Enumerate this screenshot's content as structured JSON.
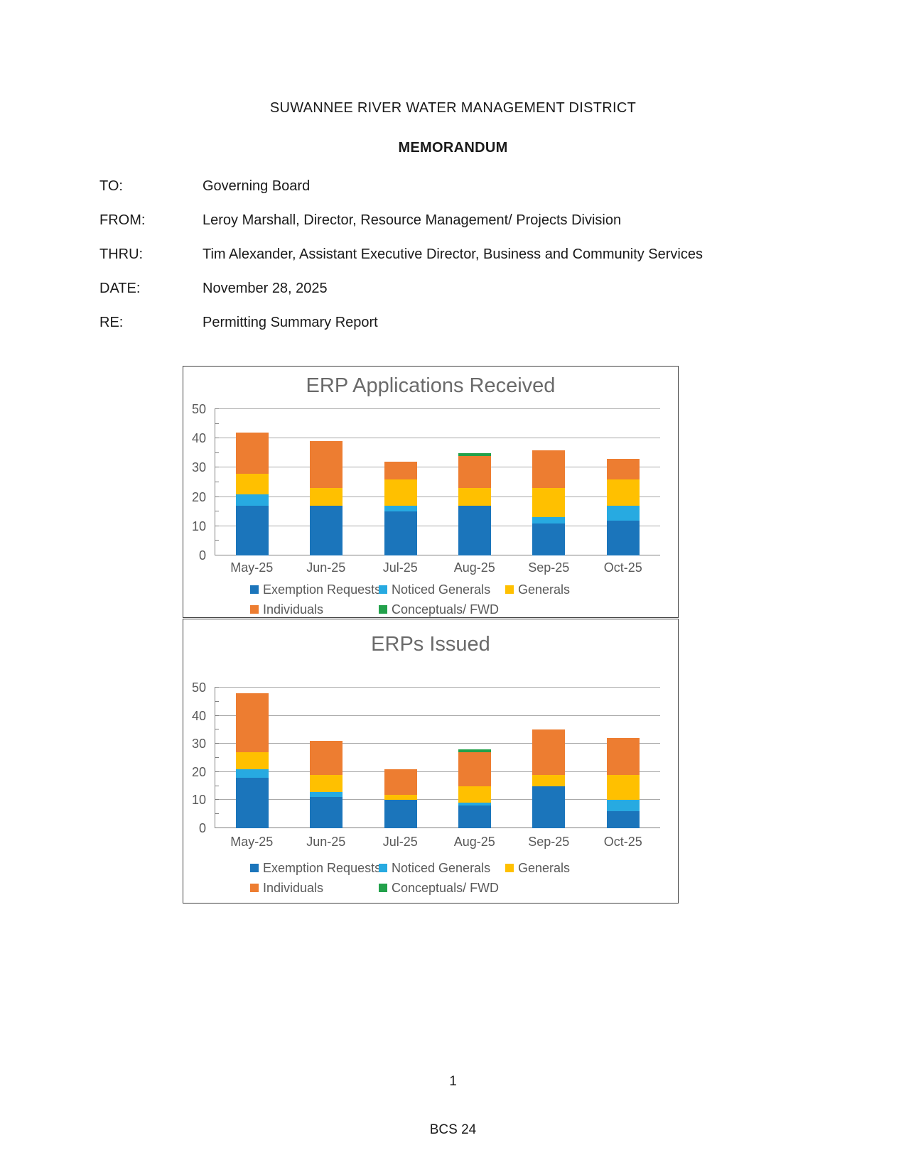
{
  "page": {
    "org_title": "SUWANNEE RIVER WATER MANAGEMENT DISTRICT",
    "doc_type": "MEMORANDUM",
    "memo_fields": [
      {
        "label": "TO:",
        "value": "Governing Board"
      },
      {
        "label": "FROM:",
        "value": "Leroy Marshall, Director, Resource Management/ Projects Division"
      },
      {
        "label": "THRU:",
        "value": "Tim Alexander, Assistant Executive Director, Business and Community Services"
      },
      {
        "label": "DATE:",
        "value": "November 28, 2025"
      },
      {
        "label": "RE:",
        "value": "Permitting Summary Report"
      }
    ],
    "page_number": "1",
    "footer_code": "BCS 24"
  },
  "colors": {
    "exemption_requests": "#1B75BB",
    "noticed_generals": "#27AAE1",
    "generals": "#FFC000",
    "individuals": "#ED7D31",
    "conceptuals_fwd": "#22A14B",
    "gridline": "#A9A9A9",
    "axis_text": "#595959",
    "chart_title_text": "#6A6A6A"
  },
  "chart_data": [
    {
      "type": "bar",
      "stacked": true,
      "title": "ERP Applications Received",
      "categories": [
        "May-25",
        "Jun-25",
        "Jul-25",
        "Aug-25",
        "Sep-25",
        "Oct-25"
      ],
      "series": [
        {
          "name": "Exemption Requests",
          "color": "#1B75BB",
          "values": [
            17,
            17,
            15,
            17,
            11,
            12
          ]
        },
        {
          "name": "Noticed Generals",
          "color": "#27AAE1",
          "values": [
            4,
            0,
            2,
            0,
            2,
            5
          ]
        },
        {
          "name": "Generals",
          "color": "#FFC000",
          "values": [
            7,
            6,
            9,
            6,
            10,
            9
          ]
        },
        {
          "name": "Individuals",
          "color": "#ED7D31",
          "values": [
            14,
            16,
            6,
            11,
            13,
            7
          ]
        },
        {
          "name": "Conceptuals/ FWD",
          "color": "#22A14B",
          "values": [
            0,
            0,
            0,
            1,
            0,
            0
          ]
        }
      ],
      "totals": [
        42,
        39,
        32,
        35,
        36,
        33
      ],
      "xlabel": "",
      "ylabel": "",
      "ylim": [
        0,
        50
      ],
      "yticks": [
        0,
        10,
        20,
        30,
        40,
        50
      ],
      "grid": true,
      "legend_position": "bottom"
    },
    {
      "type": "bar",
      "stacked": true,
      "title": "ERPs Issued",
      "categories": [
        "May-25",
        "Jun-25",
        "Jul-25",
        "Aug-25",
        "Sep-25",
        "Oct-25"
      ],
      "series": [
        {
          "name": "Exemption Requests",
          "color": "#1B75BB",
          "values": [
            18,
            11,
            10,
            8,
            15,
            6
          ]
        },
        {
          "name": "Noticed Generals",
          "color": "#27AAE1",
          "values": [
            3,
            2,
            0,
            1,
            0,
            4
          ]
        },
        {
          "name": "Generals",
          "color": "#FFC000",
          "values": [
            6,
            6,
            2,
            6,
            4,
            9
          ]
        },
        {
          "name": "Individuals",
          "color": "#ED7D31",
          "values": [
            21,
            12,
            9,
            12,
            16,
            13
          ]
        },
        {
          "name": "Conceptuals/ FWD",
          "color": "#22A14B",
          "values": [
            0,
            0,
            0,
            1,
            0,
            0
          ]
        }
      ],
      "totals": [
        48,
        31,
        21,
        28,
        35,
        32
      ],
      "xlabel": "",
      "ylabel": "",
      "ylim": [
        0,
        50
      ],
      "yticks": [
        0,
        10,
        20,
        30,
        40,
        50
      ],
      "grid": true,
      "legend_position": "bottom"
    }
  ]
}
